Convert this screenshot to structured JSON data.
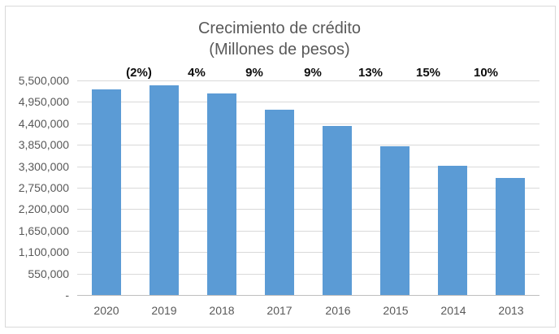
{
  "chart": {
    "title_line1": "Crecimiento de crédito",
    "title_line2": "(Millones de pesos)"
  },
  "chart_data": {
    "type": "bar",
    "title": "Crecimiento de crédito (Millones de pesos)",
    "categories": [
      "2020",
      "2019",
      "2018",
      "2017",
      "2016",
      "2015",
      "2014",
      "2013"
    ],
    "values": [
      5280000,
      5380000,
      5170000,
      4740000,
      4340000,
      3820000,
      3320000,
      3000000
    ],
    "growth_labels": {
      "values": [
        "(2%)",
        "4%",
        "9%",
        "9%",
        "13%",
        "15%",
        "10%"
      ],
      "position": "between-adjacent-bars"
    },
    "xlabel": "",
    "ylabel": "",
    "ylim": [
      0,
      5500000
    ],
    "ytick_interval": 550000,
    "ytick_labels": [
      "5,500,000",
      "4,950,000",
      "4,400,000",
      "3,850,000",
      "3,300,000",
      "2,750,000",
      "2,200,000",
      "1,650,000",
      "1,100,000",
      "550,000",
      "-"
    ],
    "grid": true,
    "legend": false,
    "bar_color": "#5b9bd5",
    "gridline_color": "#d9d9d9",
    "axis_line_color": "#bfbfbf",
    "axis_text_color": "#595959",
    "growth_label_color": "#0d0d0d",
    "title_color": "#595959",
    "border_color": "#d9d9d9"
  }
}
